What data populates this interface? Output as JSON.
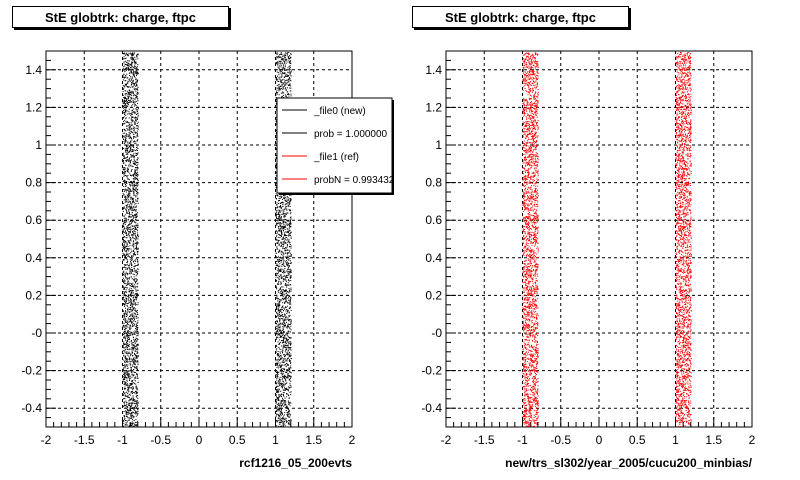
{
  "chart_data": [
    {
      "type": "scatter",
      "title": "StE globtrk: charge, ftpc",
      "xlabel": "rcf1216_05_200evts",
      "ylabel": "",
      "xlim": [
        -2,
        2
      ],
      "ylim": [
        -0.5,
        1.5
      ],
      "xticks": [
        "-2",
        "-1.5",
        "-1",
        "-0.5",
        "0",
        "0.5",
        "1",
        "1.5",
        "2"
      ],
      "yticks": [
        "-0.4",
        "-0.2",
        "-0",
        "0.2",
        "0.4",
        "0.6",
        "0.8",
        "1",
        "1.2",
        "1.4"
      ],
      "grid": true,
      "series": [
        {
          "color": "#000000",
          "x_bands": [
            [
              -1.0,
              -0.8
            ],
            [
              1.0,
              1.2
            ]
          ]
        }
      ],
      "legend": {
        "placement": "top-right",
        "entries": [
          {
            "label": "_file0 (new)",
            "color": "#000000"
          },
          {
            "label": "prob = 1.000000",
            "color": "#000000"
          },
          {
            "label": "_file1 (ref)",
            "color": "#ff0000"
          },
          {
            "label": "probN = 0.993432",
            "color": "#ff0000"
          }
        ]
      }
    },
    {
      "type": "scatter",
      "title": "StE globtrk: charge, ftpc",
      "xlabel": "new/trs_sl302/year_2005/cucu200_minbias/",
      "ylabel": "",
      "xlim": [
        -2,
        2
      ],
      "ylim": [
        -0.5,
        1.5
      ],
      "xticks": [
        "-2",
        "-1.5",
        "-1",
        "-0.5",
        "0",
        "0.5",
        "1",
        "1.5",
        "2"
      ],
      "yticks": [
        "-0.4",
        "-0.2",
        "-0",
        "0.2",
        "0.4",
        "0.6",
        "0.8",
        "1",
        "1.2",
        "1.4"
      ],
      "grid": true,
      "series": [
        {
          "color": "#ff0000",
          "x_bands": [
            [
              -1.0,
              -0.8
            ],
            [
              1.0,
              1.2
            ]
          ]
        }
      ]
    }
  ]
}
